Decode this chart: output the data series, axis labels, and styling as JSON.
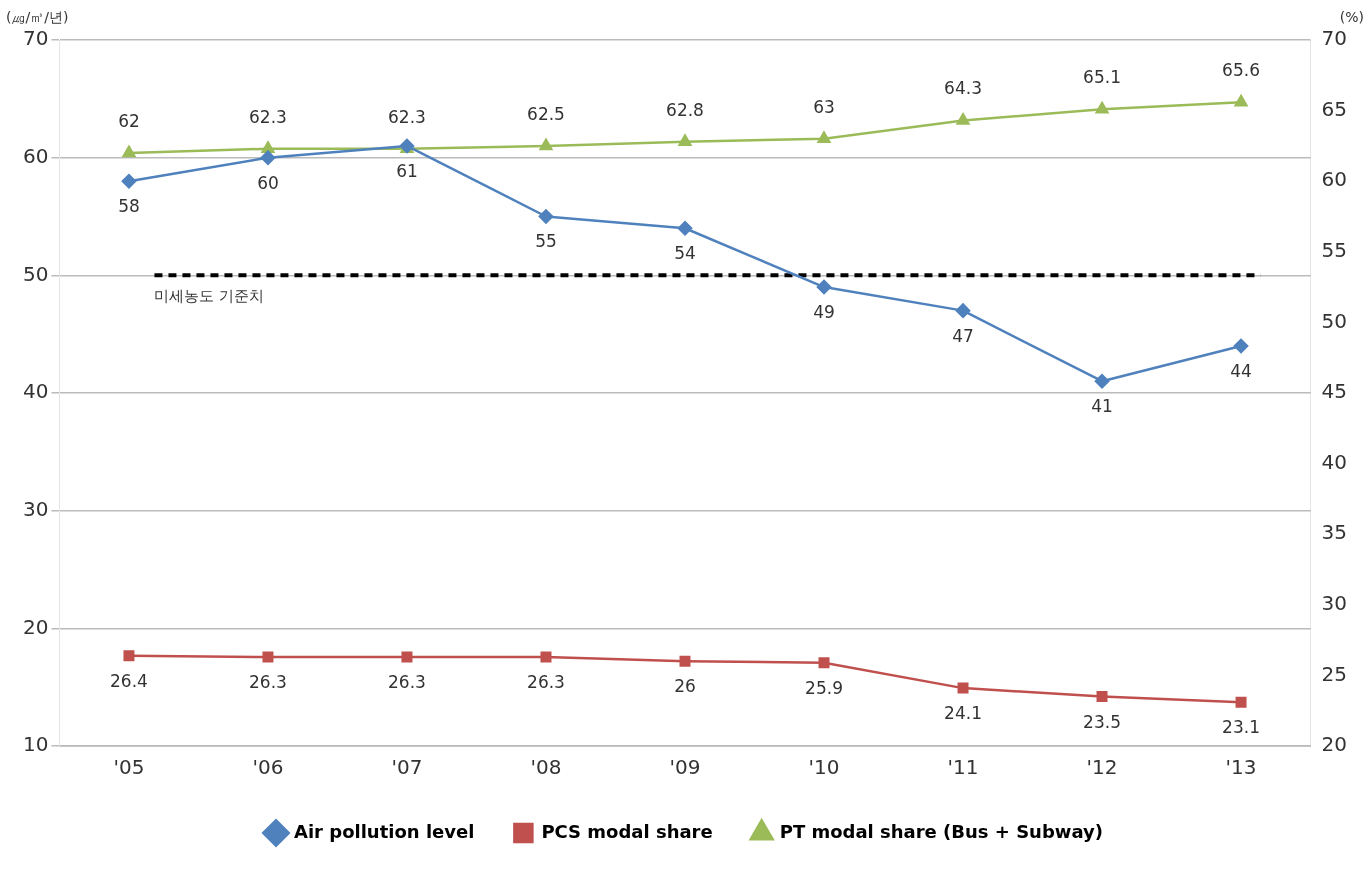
{
  "chart_data": {
    "type": "line",
    "ylabel": "(㎍/㎥/년)",
    "y2label": "(%)",
    "categories": [
      "'05",
      "'06",
      "'07",
      "'08",
      "'09",
      "'10",
      "'11",
      "'12",
      "'13"
    ],
    "series": [
      {
        "name": "Air pollution level",
        "color": "#4f81bd",
        "marker": "diamond",
        "values": [
          58,
          60,
          61,
          55,
          54,
          49,
          47,
          41,
          44
        ]
      },
      {
        "name": "PCS modal share",
        "color": "#c0504d",
        "marker": "square",
        "axis": "y2",
        "values": [
          26.4,
          26.3,
          26.3,
          26.3,
          26,
          25.9,
          24.1,
          23.5,
          23.1
        ]
      },
      {
        "name": "PT modal share (Bus + Subway)",
        "color": "#9bbb59",
        "marker": "triangle",
        "axis": "y2",
        "values": [
          62,
          62.3,
          62.3,
          62.5,
          62.8,
          63,
          64.3,
          65.1,
          65.6
        ]
      }
    ],
    "ylim": [
      10,
      70
    ],
    "yticks": [
      10,
      20,
      30,
      40,
      50,
      60,
      70
    ],
    "y2lim": [
      20,
      70
    ],
    "y2ticks": [
      20,
      25,
      30,
      35,
      40,
      45,
      50,
      55,
      60,
      65,
      70
    ],
    "ref_lines": [
      {
        "axis": "y",
        "value": 50,
        "label": "미세농도 기준치",
        "color": "#000000",
        "line_style": "dashed"
      }
    ],
    "grid": "y",
    "legend": "bottom",
    "data_labels": true,
    "line_style": "solid"
  }
}
